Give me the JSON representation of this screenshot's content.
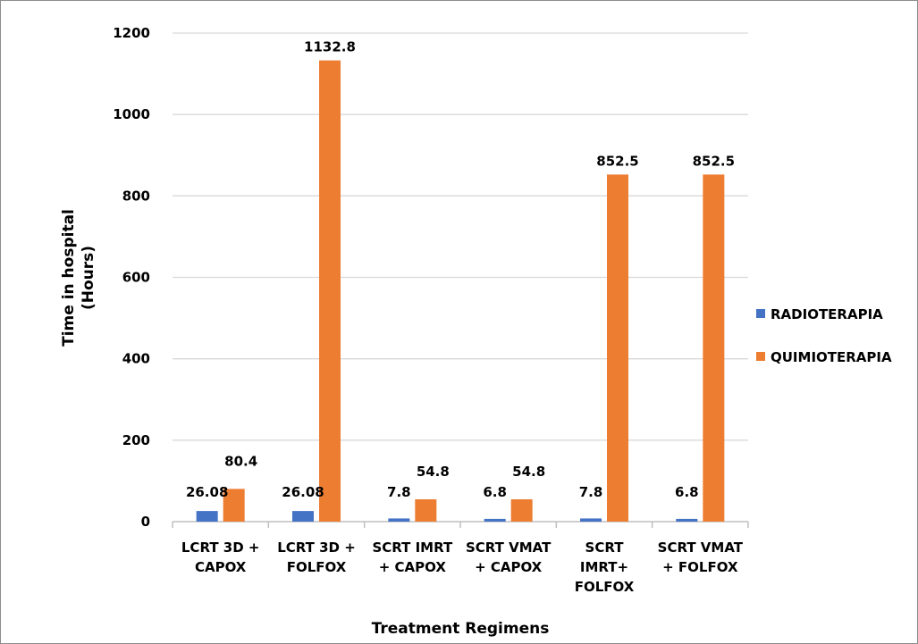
{
  "chart_data": {
    "type": "bar",
    "title": "",
    "xlabel": "Treatment Regimens",
    "ylabel": [
      "Time in hospital",
      "(Hours)"
    ],
    "ylim": [
      0,
      1200
    ],
    "yticks": [
      0,
      200,
      400,
      600,
      800,
      1000,
      1200
    ],
    "grid": true,
    "legend_position": "right",
    "categories": [
      [
        "LCRT 3D +",
        "CAPOX"
      ],
      [
        "LCRT 3D +",
        "FOLFOX"
      ],
      [
        "SCRT IMRT",
        "+ CAPOX"
      ],
      [
        "SCRT VMAT",
        "+ CAPOX"
      ],
      [
        "SCRT",
        "IMRT+",
        "FOLFOX"
      ],
      [
        "SCRT VMAT",
        "+ FOLFOX"
      ]
    ],
    "series": [
      {
        "name": "RADIOTERAPIA",
        "color": "#4472c4",
        "values": [
          26.08,
          26.08,
          7.8,
          6.8,
          7.8,
          6.8
        ],
        "labels": [
          "26.08",
          "26.08",
          "7.8",
          "6.8",
          "7.8",
          "6.8"
        ]
      },
      {
        "name": "QUIMIOTERAPIA",
        "color": "#ed7d31",
        "values": [
          80.4,
          1132.8,
          54.8,
          54.8,
          852.5,
          852.5
        ],
        "labels": [
          "80.4",
          "1132.8",
          "54.8",
          "54.8",
          "852.5",
          "852.5"
        ]
      }
    ]
  },
  "colors": {
    "gridline": "#d9d9d9",
    "axis": "#bfbfbf",
    "frame": "#8c8c8c"
  }
}
